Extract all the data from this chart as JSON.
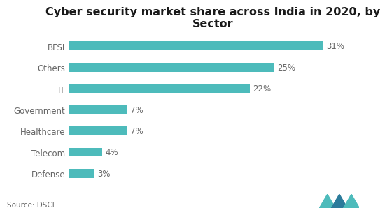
{
  "title": "Cyber security market share across India in 2020, by\nSector",
  "categories": [
    "BFSI",
    "Others",
    "IT",
    "Government",
    "Healthcare",
    "Telecom",
    "Defense"
  ],
  "values": [
    31,
    25,
    22,
    7,
    7,
    4,
    3
  ],
  "bar_color": "#4DBBBB",
  "label_color": "#666666",
  "value_color": "#666666",
  "title_color": "#1a1a1a",
  "background_color": "#ffffff",
  "source_text": "Source: DSCI",
  "xlim": [
    0,
    35
  ],
  "bar_height": 0.42,
  "title_fontsize": 11.5,
  "label_fontsize": 8.5,
  "value_fontsize": 8.5,
  "source_fontsize": 7.5
}
